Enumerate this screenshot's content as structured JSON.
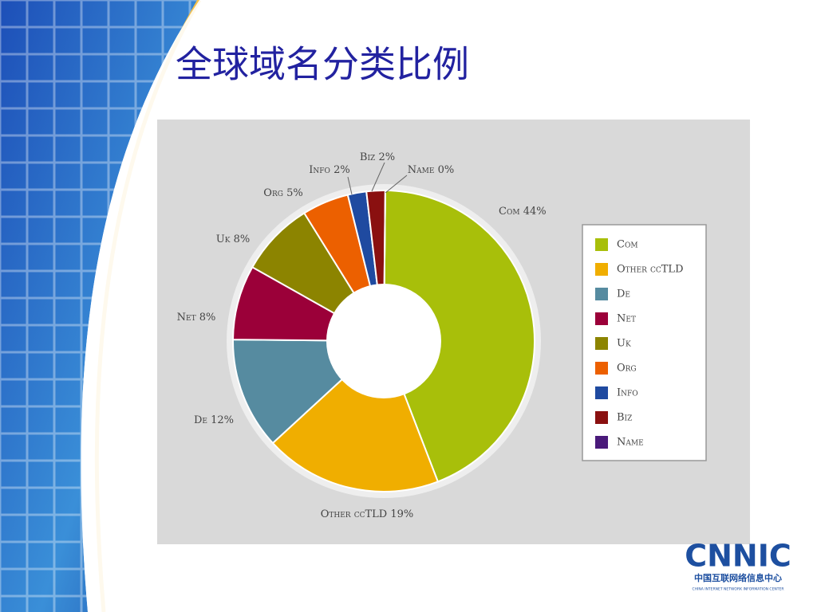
{
  "chart_data": {
    "type": "donut",
    "title": "全球域名分类比例",
    "categories": [
      "Com",
      "Other ccTLD",
      "De",
      "Net",
      "Uk",
      "Org",
      "Info",
      "Biz",
      "Name"
    ],
    "values": [
      44,
      19,
      12,
      8,
      8,
      5,
      2,
      2,
      0
    ],
    "value_labels": [
      "44%",
      "19%",
      "12%",
      "8%",
      "8%",
      "5%",
      "2%",
      "2%",
      "0%"
    ],
    "colors": [
      "#a8bf0a",
      "#f0ae00",
      "#568ba0",
      "#9b0039",
      "#8c8400",
      "#ec6000",
      "#1f4aa0",
      "#8a1010",
      "#4a1a7a"
    ],
    "legend": "right"
  },
  "logo": {
    "name": "CNNIC",
    "subtitle": "中国互联网络信息中心",
    "tagline": "CHINA INTERNET NETWORK INFORMATION CENTER"
  }
}
